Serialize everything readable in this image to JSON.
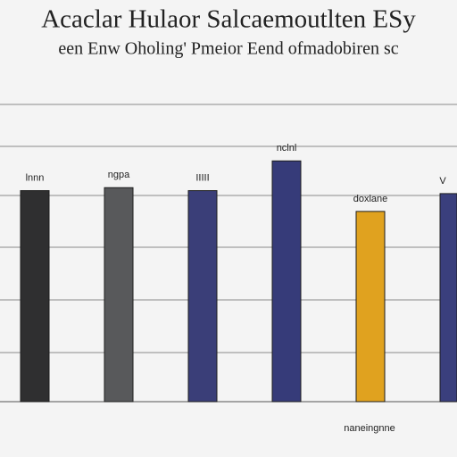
{
  "chart_data": {
    "type": "bar",
    "title": "Acaclar Hulaor Salcaemoutlten ESy",
    "subtitle": "een Enw Oholing' Pmeior Eend ofmadobiren sc",
    "categories": [
      "lnnn",
      "ngpa",
      "IIIII",
      "nclnl",
      "doxlane",
      "V"
    ],
    "values": [
      71,
      72,
      71,
      81,
      64,
      70
    ],
    "colors": [
      "#2f2f30",
      "#58595b",
      "#3a3e78",
      "#363b79",
      "#e0a21f",
      "#3a3f7d"
    ],
    "annotation": "naneingnne",
    "ylim": [
      0,
      100
    ]
  }
}
